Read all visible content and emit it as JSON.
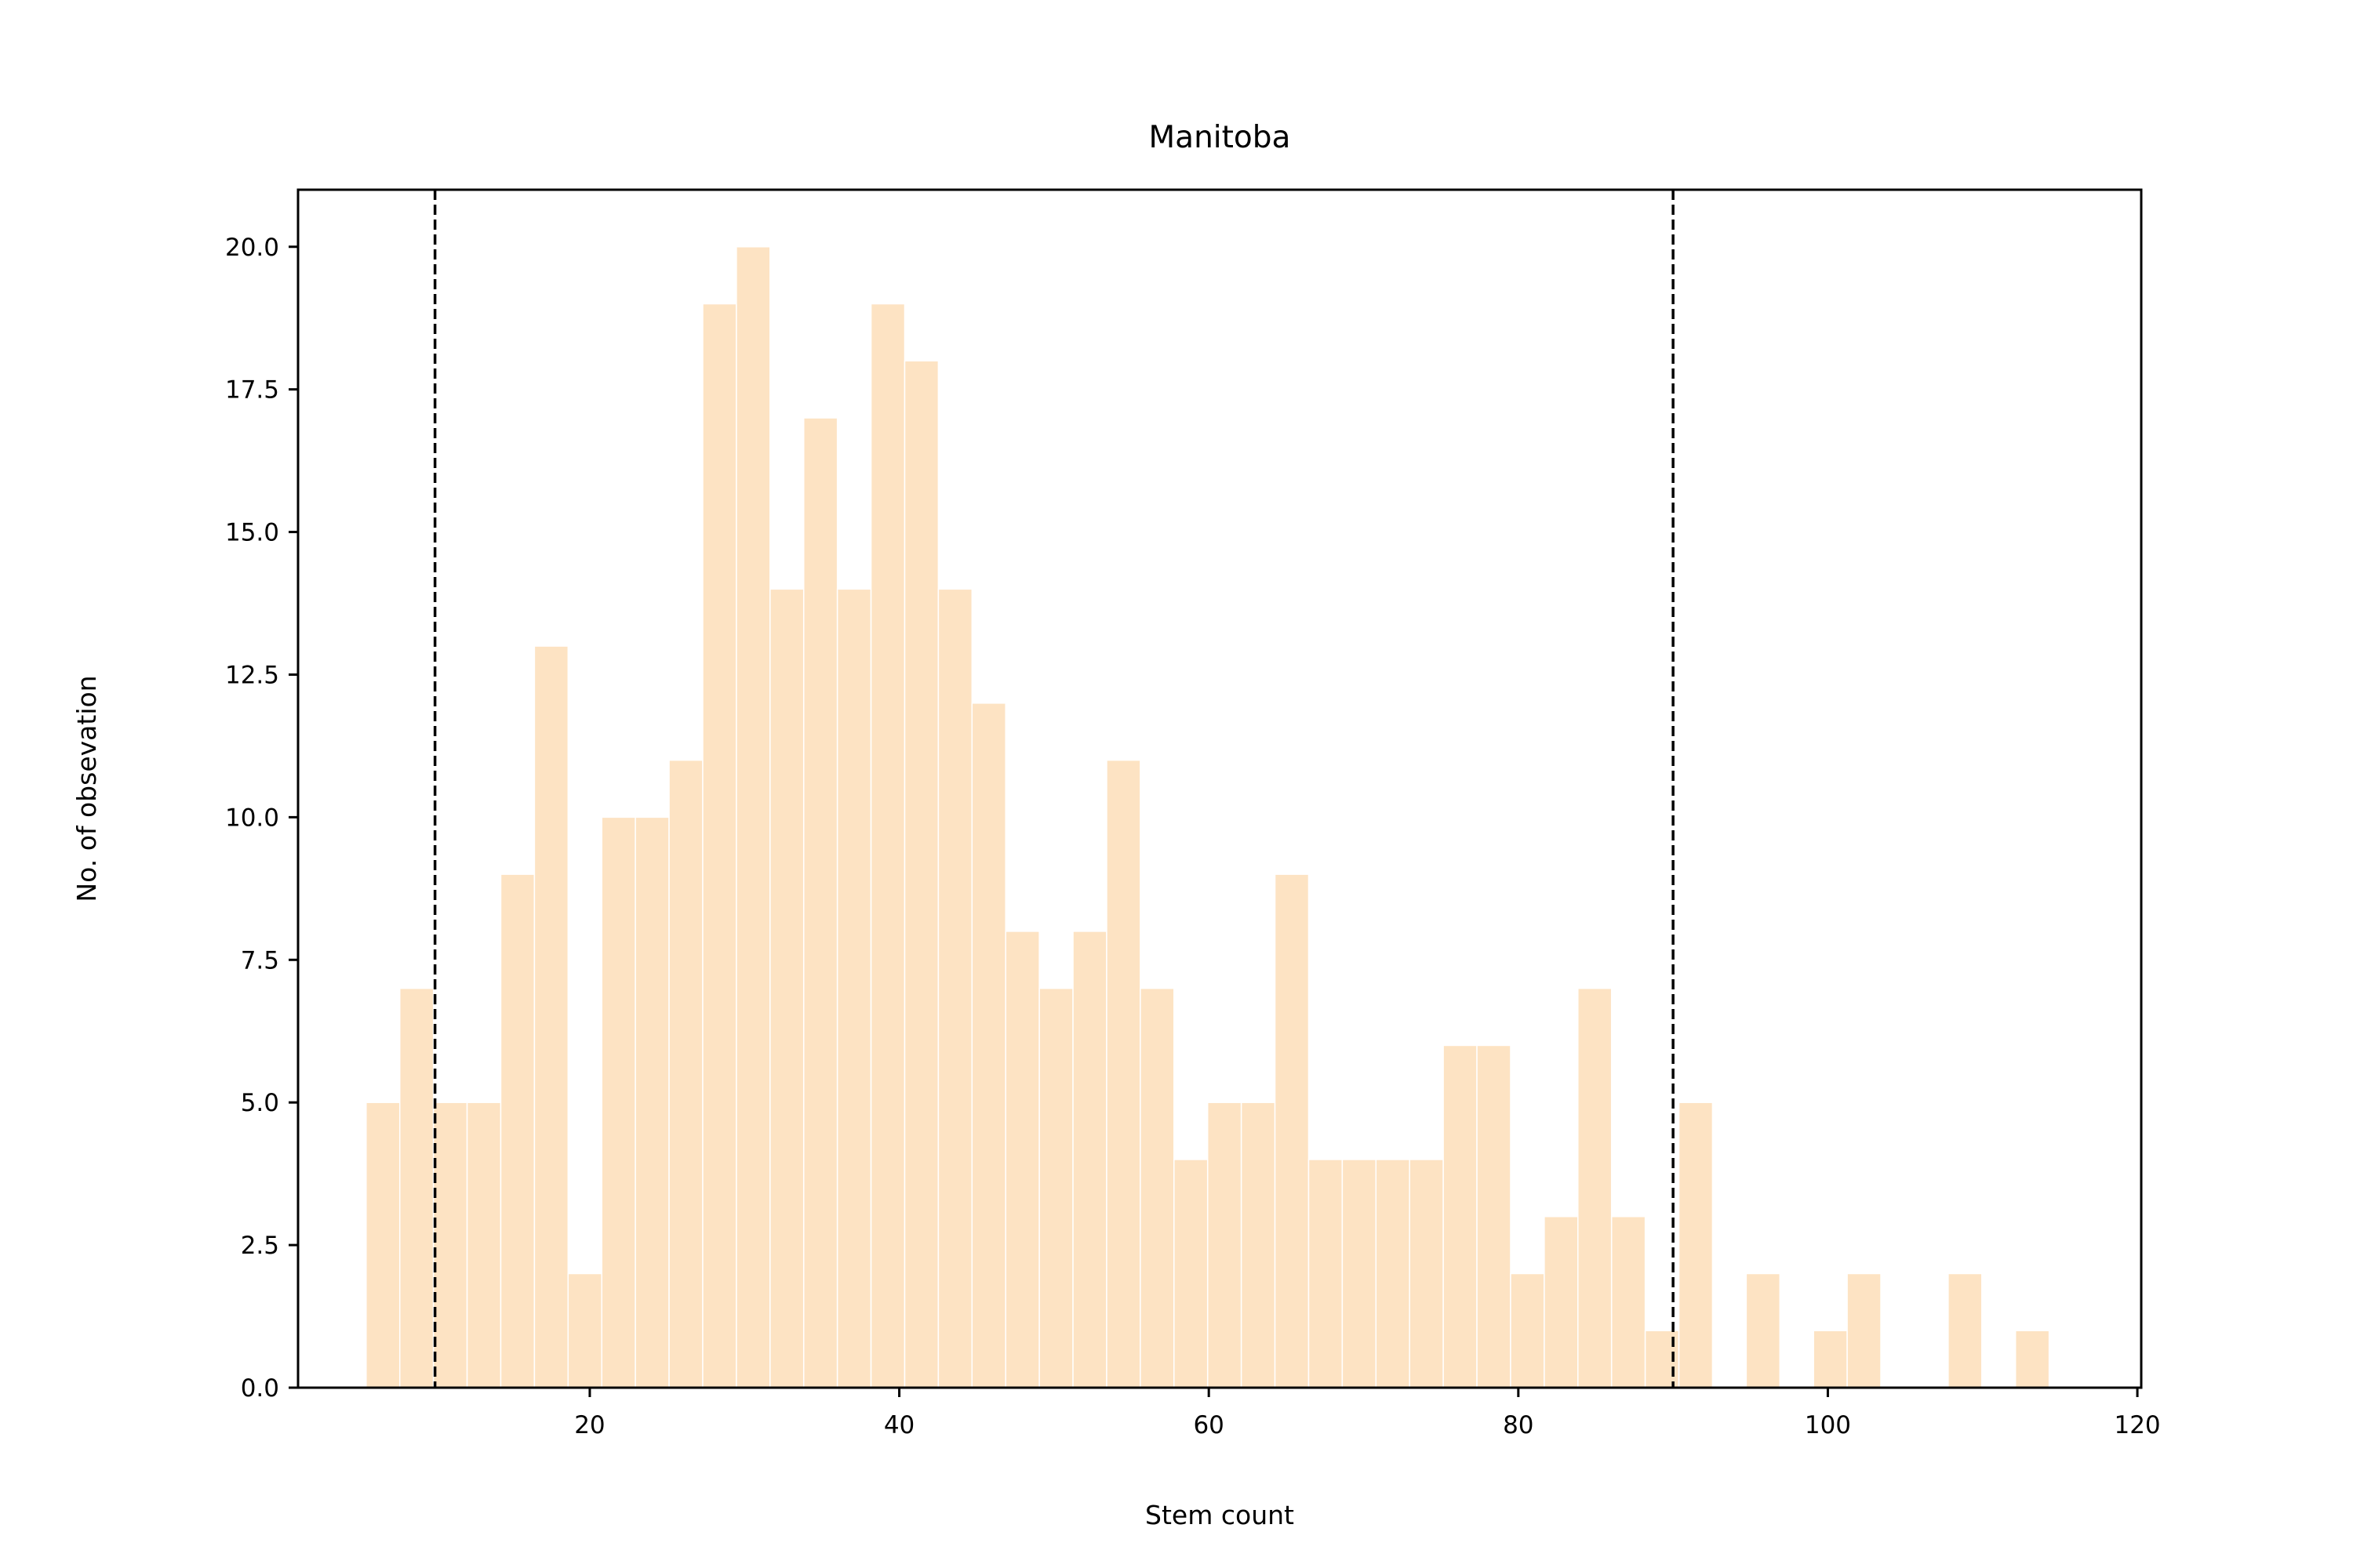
{
  "chart_data": {
    "type": "bar",
    "title": "Manitoba",
    "xlabel": "Stem count",
    "ylabel": "No. of obsevation",
    "xlim": [
      1.15,
      120.25
    ],
    "ylim": [
      0,
      21
    ],
    "xticks": [
      20,
      40,
      60,
      80,
      100,
      120
    ],
    "xtick_labels": [
      "20",
      "40",
      "60",
      "80",
      "100",
      "120"
    ],
    "yticks": [
      0,
      2.5,
      5,
      7.5,
      10,
      12.5,
      15,
      17.5,
      20
    ],
    "ytick_labels": [
      "0.0",
      "2.5",
      "5.0",
      "7.5",
      "10.0",
      "12.5",
      "15.0",
      "17.5",
      "20.0"
    ],
    "bin_start": 5.55,
    "bin_width": 2.175,
    "counts": [
      5,
      7,
      5,
      5,
      9,
      13,
      2,
      10,
      10,
      11,
      19,
      20,
      14,
      17,
      14,
      19,
      18,
      14,
      12,
      8,
      7,
      8,
      11,
      7,
      4,
      5,
      5,
      9,
      4,
      4,
      4,
      4,
      6,
      6,
      2,
      3,
      7,
      3,
      1,
      5,
      0,
      2,
      0,
      1,
      2,
      0,
      0,
      2,
      0,
      1
    ],
    "vlines": [
      10,
      90
    ],
    "bar_color": "#fde3c3",
    "bar_edge_color": "#ffffff",
    "vline_color": "#000000",
    "grid": false
  }
}
